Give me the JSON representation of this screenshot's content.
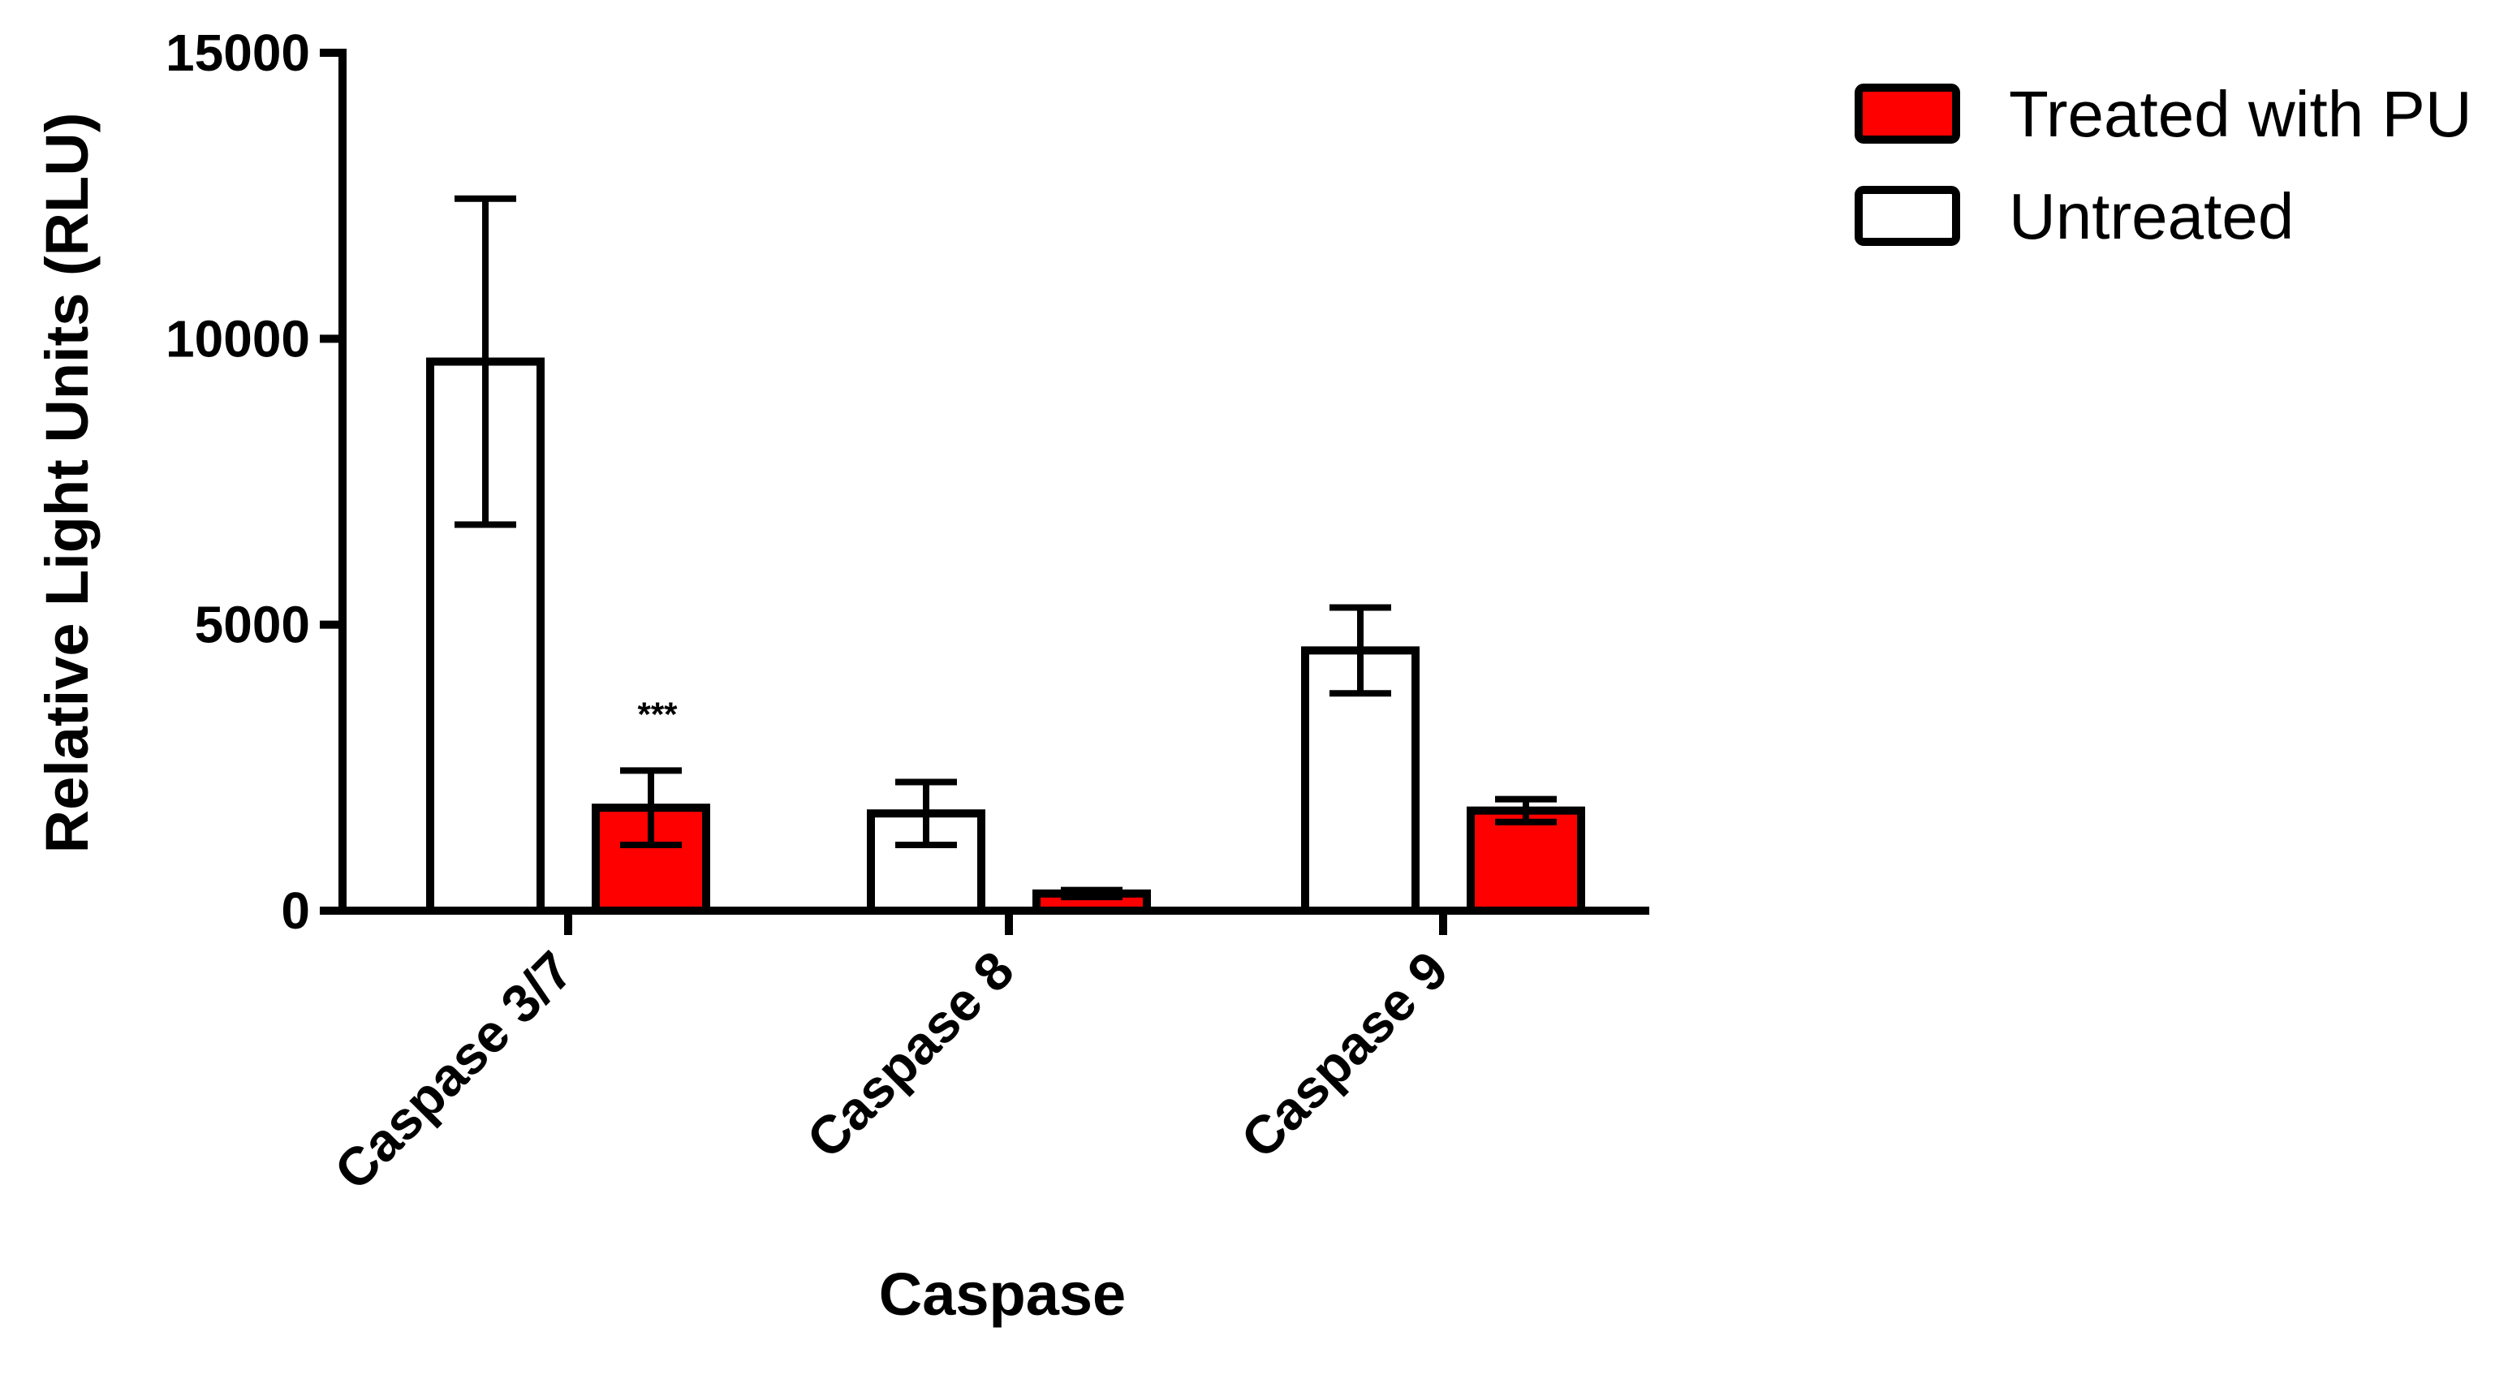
{
  "chart_data": {
    "type": "bar",
    "xlabel": "Caspase",
    "ylabel": "Relative Light Units (RLU)",
    "ylim": [
      0,
      15000
    ],
    "yticks": [
      0,
      5000,
      10000,
      15000
    ],
    "ytick_labels": [
      "0",
      "5000",
      "10000",
      "15000"
    ],
    "categories": [
      "Caspase 3/7",
      "Caspase 8",
      "Caspase 9"
    ],
    "series": [
      {
        "name": "Untreated",
        "color": "#ffffff",
        "values": [
          9600,
          1700,
          4550
        ],
        "error": [
          2850,
          550,
          750
        ]
      },
      {
        "name": "Treated with PU",
        "color": "#ff0000",
        "values": [
          1800,
          300,
          1750
        ],
        "error": [
          650,
          60,
          200
        ]
      }
    ],
    "legend_order": [
      "Treated with PU",
      "Untreated"
    ],
    "legend_position": "top-right",
    "annotations": [
      {
        "text": "***",
        "category": "Caspase 3/7",
        "series": "Treated with PU"
      }
    ],
    "grid": false
  }
}
